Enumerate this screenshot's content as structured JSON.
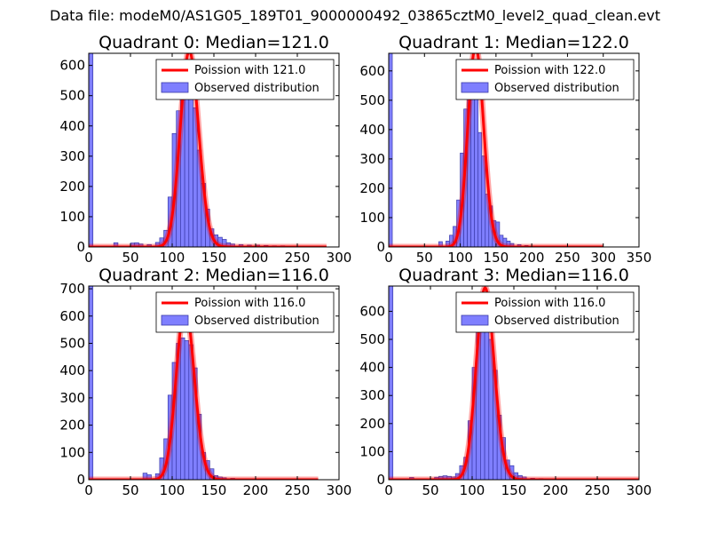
{
  "suptitle": "Data file: modeM0/AS1G05_189T01_9000000492_03865cztM0_level2_quad_clean.evt",
  "colors": {
    "bar_fill": "#7f7fff",
    "bar_edge": "#3a3aa8",
    "curve": "#ff0000"
  },
  "chart_data": [
    {
      "type": "bar",
      "title": "Quadrant 0: Median=121.0",
      "xlim": [
        0,
        300
      ],
      "ylim": [
        0,
        640
      ],
      "xticks": [
        0,
        50,
        100,
        150,
        200,
        250,
        300
      ],
      "yticks": [
        0,
        100,
        200,
        300,
        400,
        500,
        600
      ],
      "bin_width": 5,
      "bin_starts": [
        0,
        30,
        50,
        55,
        60,
        70,
        80,
        85,
        90,
        95,
        100,
        105,
        110,
        115,
        120,
        125,
        130,
        135,
        140,
        145,
        150,
        155,
        160,
        165,
        170,
        180,
        190,
        200,
        210,
        220,
        230
      ],
      "values": [
        640,
        14,
        13,
        14,
        10,
        8,
        15,
        30,
        55,
        165,
        375,
        450,
        510,
        530,
        505,
        460,
        320,
        210,
        125,
        60,
        40,
        32,
        25,
        14,
        10,
        8,
        6,
        6,
        5,
        4,
        4
      ],
      "poisson_mean": 121.0,
      "curve_range": [
        0,
        285
      ],
      "legend": [
        "Poission with 121.0",
        "Observed distribution"
      ]
    },
    {
      "type": "bar",
      "title": "Quadrant 1: Median=122.0",
      "xlim": [
        0,
        350
      ],
      "ylim": [
        0,
        660
      ],
      "xticks": [
        0,
        50,
        100,
        150,
        200,
        250,
        300,
        350
      ],
      "yticks": [
        0,
        100,
        200,
        300,
        400,
        500,
        600
      ],
      "bin_width": 5,
      "bin_starts": [
        0,
        70,
        80,
        85,
        90,
        95,
        100,
        105,
        110,
        115,
        120,
        125,
        130,
        135,
        140,
        145,
        150,
        155,
        160,
        165,
        170,
        180,
        190
      ],
      "values": [
        660,
        18,
        20,
        40,
        70,
        160,
        320,
        470,
        540,
        560,
        520,
        390,
        310,
        180,
        140,
        90,
        85,
        40,
        30,
        20,
        12,
        8,
        5
      ],
      "poisson_mean": 122.0,
      "curve_range": [
        0,
        300
      ],
      "legend": [
        "Poission with 122.0",
        "Observed distribution"
      ]
    },
    {
      "type": "bar",
      "title": "Quadrant 2: Median=116.0",
      "xlim": [
        0,
        300
      ],
      "ylim": [
        0,
        710
      ],
      "xticks": [
        0,
        50,
        100,
        150,
        200,
        250,
        300
      ],
      "yticks": [
        0,
        100,
        200,
        300,
        400,
        500,
        600,
        700
      ],
      "bin_width": 5,
      "bin_starts": [
        0,
        65,
        70,
        80,
        85,
        90,
        95,
        100,
        105,
        110,
        115,
        120,
        125,
        130,
        135,
        140,
        145,
        150,
        155,
        160,
        170,
        180
      ],
      "values": [
        710,
        24,
        18,
        22,
        80,
        150,
        310,
        430,
        500,
        520,
        510,
        495,
        410,
        240,
        100,
        70,
        40,
        15,
        10,
        7,
        5,
        3
      ],
      "poisson_mean": 116.0,
      "curve_range": [
        0,
        275
      ],
      "legend": [
        "Poission with 116.0",
        "Observed distribution"
      ]
    },
    {
      "type": "bar",
      "title": "Quadrant 3: Median=116.0",
      "xlim": [
        0,
        300
      ],
      "ylim": [
        0,
        690
      ],
      "xticks": [
        0,
        50,
        100,
        150,
        200,
        250,
        300
      ],
      "yticks": [
        0,
        100,
        200,
        300,
        400,
        500,
        600
      ],
      "bin_width": 5,
      "bin_starts": [
        0,
        25,
        55,
        60,
        65,
        70,
        75,
        80,
        85,
        90,
        95,
        100,
        105,
        110,
        115,
        120,
        125,
        130,
        135,
        140,
        145,
        150,
        155,
        160,
        170,
        180
      ],
      "values": [
        690,
        8,
        9,
        12,
        14,
        12,
        10,
        22,
        50,
        80,
        210,
        400,
        530,
        560,
        540,
        500,
        390,
        230,
        150,
        70,
        50,
        25,
        15,
        10,
        5,
        4
      ],
      "poisson_mean": 116.0,
      "curve_range": [
        0,
        300
      ],
      "legend": [
        "Poission with 116.0",
        "Observed distribution"
      ]
    }
  ]
}
